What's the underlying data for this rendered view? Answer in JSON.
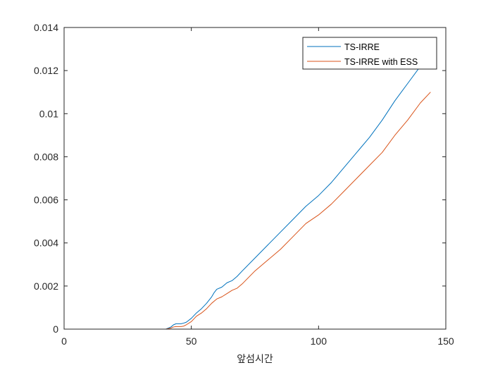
{
  "chart_data": {
    "type": "line",
    "title": "",
    "xlabel": "앞섬시간",
    "ylabel": "",
    "xlim": [
      0,
      150
    ],
    "ylim": [
      0,
      0.014
    ],
    "xticks": [
      "0",
      "50",
      "100",
      "150"
    ],
    "yticks": [
      "0",
      "0.002",
      "0.004",
      "0.006",
      "0.008",
      "0.01",
      "0.012",
      "0.014"
    ],
    "grid": false,
    "legend_position": "top-right",
    "series": [
      {
        "name": "TS-IRRE",
        "color": "#0072BD",
        "x": [
          0,
          10,
          20,
          30,
          40,
          42,
          43,
          44,
          46,
          47,
          48,
          50,
          52,
          54,
          56,
          58,
          59,
          60,
          62,
          64,
          66,
          68,
          70,
          75,
          80,
          85,
          90,
          95,
          100,
          105,
          110,
          115,
          120,
          125,
          130,
          135,
          140
        ],
        "y": [
          0,
          0,
          0,
          0,
          0,
          0.0001,
          0.0002,
          0.00025,
          0.00025,
          0.00028,
          0.00032,
          0.0005,
          0.00075,
          0.00095,
          0.0012,
          0.0015,
          0.0017,
          0.00185,
          0.00195,
          0.00215,
          0.00225,
          0.00245,
          0.0027,
          0.0033,
          0.0039,
          0.0045,
          0.0051,
          0.0057,
          0.0062,
          0.0068,
          0.0075,
          0.0082,
          0.0089,
          0.0097,
          0.0106,
          0.0114,
          0.0122
        ]
      },
      {
        "name": "TS-IRRE with ESS",
        "color": "#D95319",
        "x": [
          0,
          10,
          20,
          30,
          40,
          42,
          43,
          44,
          46,
          47,
          48,
          50,
          52,
          54,
          56,
          58,
          59,
          60,
          62,
          64,
          66,
          68,
          70,
          75,
          80,
          85,
          90,
          95,
          100,
          105,
          110,
          115,
          120,
          125,
          130,
          135,
          140,
          144
        ],
        "y": [
          0,
          0,
          0,
          0,
          0,
          5e-05,
          0.0001,
          0.00012,
          0.00012,
          0.00014,
          0.0002,
          0.00035,
          0.0006,
          0.00075,
          0.00095,
          0.0012,
          0.0013,
          0.0014,
          0.0015,
          0.00165,
          0.0018,
          0.0019,
          0.0021,
          0.0027,
          0.0032,
          0.0037,
          0.0043,
          0.0049,
          0.0053,
          0.0058,
          0.0064,
          0.007,
          0.0076,
          0.0082,
          0.009,
          0.0097,
          0.0105,
          0.011
        ]
      }
    ]
  }
}
